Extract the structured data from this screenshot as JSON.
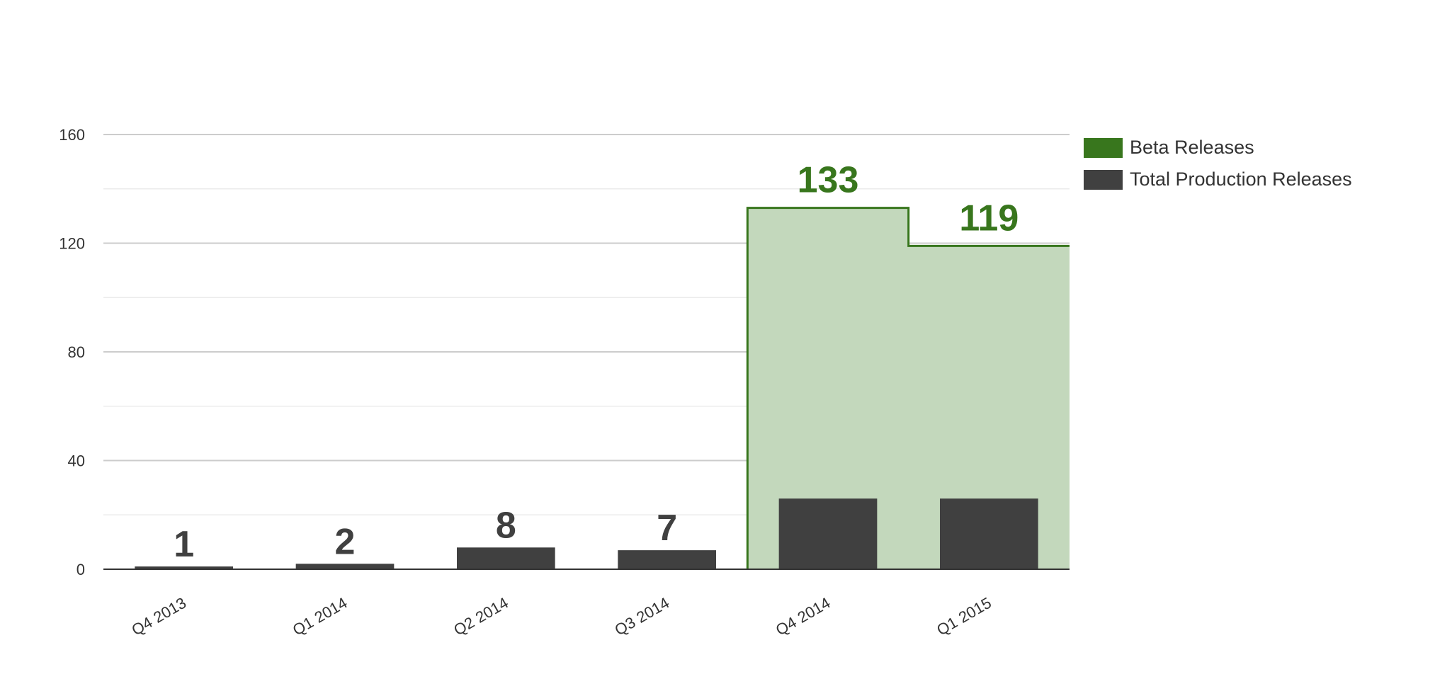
{
  "chart_data": {
    "type": "bar",
    "categories": [
      "Q4 2013",
      "Q1 2014",
      "Q2 2014",
      "Q3 2014",
      "Q4 2014",
      "Q1 2015"
    ],
    "series": [
      {
        "name": "Beta Releases",
        "chart_type": "stepped-area",
        "color": "#38761d",
        "fill": "#c3d8bc",
        "values": [
          0,
          0,
          0,
          0,
          133,
          119
        ],
        "data_labels": [
          "",
          "",
          "",
          "",
          "133",
          "119"
        ],
        "data_label_color": "#38761d"
      },
      {
        "name": "Total Production Releases",
        "chart_type": "bar",
        "color": "#404040",
        "values": [
          1,
          2,
          8,
          7,
          26,
          26
        ],
        "data_labels": [
          "1",
          "2",
          "8",
          "7",
          "",
          ""
        ],
        "data_label_color": "#404040"
      }
    ],
    "ylim": [
      0,
      160
    ],
    "yticks": [
      0,
      40,
      80,
      120,
      160
    ],
    "minor_gridlines": true,
    "x_label_rotation": -30,
    "legend_position": "right",
    "title": "",
    "xlabel": "",
    "ylabel": ""
  }
}
